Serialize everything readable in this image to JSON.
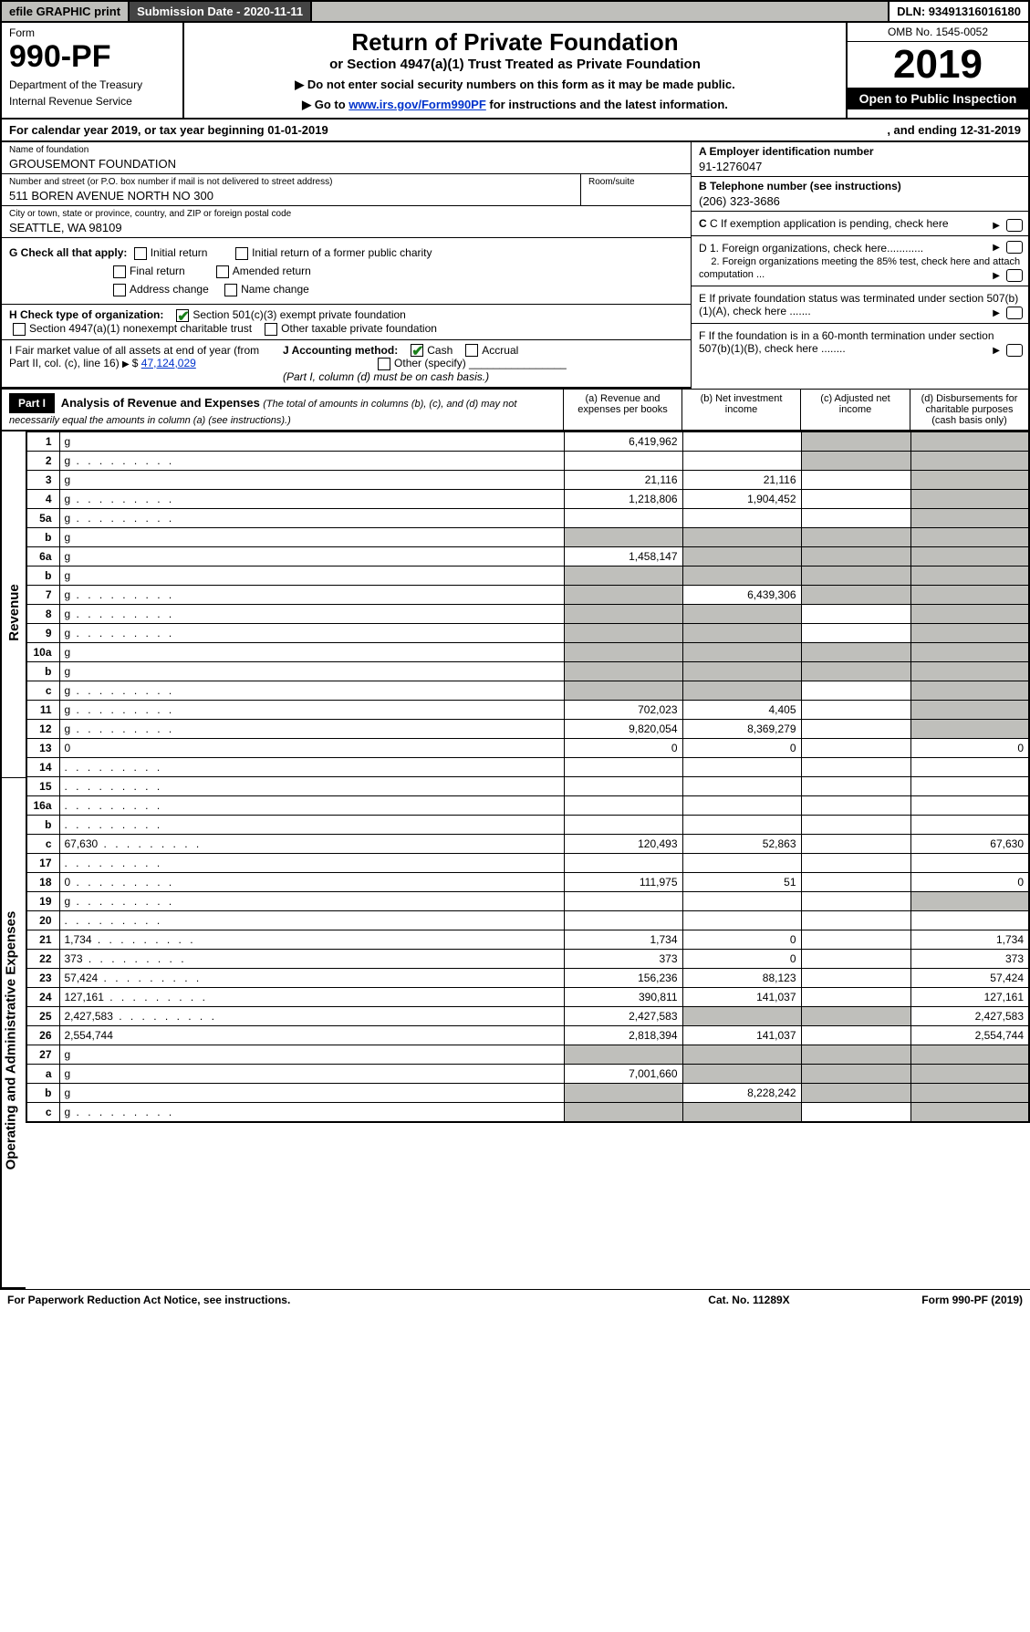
{
  "topbar": {
    "efile": "efile GRAPHIC print",
    "submission_label": "Submission Date - 2020-11-11",
    "dln": "DLN: 93491316016180"
  },
  "header": {
    "form_label": "Form",
    "form_number": "990-PF",
    "dept1": "Department of the Treasury",
    "dept2": "Internal Revenue Service",
    "title": "Return of Private Foundation",
    "subtitle": "or Section 4947(a)(1) Trust Treated as Private Foundation",
    "note1": "▶ Do not enter social security numbers on this form as it may be made public.",
    "note2_prefix": "▶ Go to ",
    "note2_link": "www.irs.gov/Form990PF",
    "note2_suffix": " for instructions and the latest information.",
    "omb": "OMB No. 1545-0052",
    "year": "2019",
    "open": "Open to Public Inspection"
  },
  "calrow": {
    "left": "For calendar year 2019, or tax year beginning 01-01-2019",
    "right": ", and ending 12-31-2019"
  },
  "info": {
    "name_lbl": "Name of foundation",
    "name": "GROUSEMONT FOUNDATION",
    "addr_lbl": "Number and street (or P.O. box number if mail is not delivered to street address)",
    "addr": "511 BOREN AVENUE NORTH NO 300",
    "room_lbl": "Room/suite",
    "city_lbl": "City or town, state or province, country, and ZIP or foreign postal code",
    "city": "SEATTLE, WA  98109",
    "a_lbl": "A Employer identification number",
    "a_val": "91-1276047",
    "b_lbl": "B Telephone number (see instructions)",
    "b_val": "(206) 323-3686",
    "c_lbl": "C If exemption application is pending, check here",
    "d1": "D 1. Foreign organizations, check here............",
    "d2": "2. Foreign organizations meeting the 85% test, check here and attach computation ...",
    "e": "E  If private foundation status was terminated under section 507(b)(1)(A), check here .......",
    "f": "F  If the foundation is in a 60-month termination under section 507(b)(1)(B), check here ........"
  },
  "g": {
    "label": "G Check all that apply:",
    "opts": [
      "Initial return",
      "Final return",
      "Address change",
      "Initial return of a former public charity",
      "Amended return",
      "Name change"
    ]
  },
  "h": {
    "label": "H Check type of organization:",
    "opt1": "Section 501(c)(3) exempt private foundation",
    "opt2": "Section 4947(a)(1) nonexempt charitable trust",
    "opt3": "Other taxable private foundation"
  },
  "i": {
    "label": "I Fair market value of all assets at end of year (from Part II, col. (c), line 16)",
    "val": "47,124,029",
    "j_label": "J Accounting method:",
    "j_cash": "Cash",
    "j_accrual": "Accrual",
    "j_other": "Other (specify)",
    "j_note": "(Part I, column (d) must be on cash basis.)"
  },
  "part1": {
    "label": "Part I",
    "title": "Analysis of Revenue and Expenses",
    "note": "(The total of amounts in columns (b), (c), and (d) may not necessarily equal the amounts in column (a) (see instructions).)",
    "col_a": "(a)   Revenue and expenses per books",
    "col_b": "(b)  Net investment income",
    "col_c": "(c)  Adjusted net income",
    "col_d": "(d)  Disbursements for charitable purposes (cash basis only)"
  },
  "side": {
    "revenue": "Revenue",
    "expenses": "Operating and Administrative Expenses"
  },
  "lines": [
    {
      "n": "1",
      "d": "g",
      "a": "6,419,962",
      "b": "",
      "c": "g"
    },
    {
      "n": "2",
      "d": "g",
      "a": "",
      "b": "",
      "c": "g",
      "dots": true
    },
    {
      "n": "3",
      "d": "g",
      "a": "21,116",
      "b": "21,116",
      "c": ""
    },
    {
      "n": "4",
      "d": "g",
      "a": "1,218,806",
      "b": "1,904,452",
      "c": "",
      "dots": true
    },
    {
      "n": "5a",
      "d": "g",
      "a": "",
      "b": "",
      "c": "",
      "dots": true
    },
    {
      "n": "b",
      "d": "g",
      "a": "g",
      "b": "g",
      "c": "g"
    },
    {
      "n": "6a",
      "d": "g",
      "a": "1,458,147",
      "b": "g",
      "c": "g"
    },
    {
      "n": "b",
      "d": "g",
      "a": "g",
      "b": "g",
      "c": "g"
    },
    {
      "n": "7",
      "d": "g",
      "a": "g",
      "b": "6,439,306",
      "c": "g",
      "dots": true
    },
    {
      "n": "8",
      "d": "g",
      "a": "g",
      "b": "g",
      "c": "",
      "dots": true
    },
    {
      "n": "9",
      "d": "g",
      "a": "g",
      "b": "g",
      "c": "",
      "dots": true
    },
    {
      "n": "10a",
      "d": "g",
      "a": "g",
      "b": "g",
      "c": "g"
    },
    {
      "n": "b",
      "d": "g",
      "a": "g",
      "b": "g",
      "c": "g"
    },
    {
      "n": "c",
      "d": "g",
      "a": "g",
      "b": "g",
      "c": "",
      "dots": true
    },
    {
      "n": "11",
      "d": "g",
      "a": "702,023",
      "b": "4,405",
      "c": "",
      "dots": true
    },
    {
      "n": "12",
      "d": "g",
      "a": "9,820,054",
      "b": "8,369,279",
      "c": "",
      "dots": true
    },
    {
      "n": "13",
      "d": "0",
      "a": "0",
      "b": "0",
      "c": ""
    },
    {
      "n": "14",
      "d": "",
      "a": "",
      "b": "",
      "c": "",
      "dots": true
    },
    {
      "n": "15",
      "d": "",
      "a": "",
      "b": "",
      "c": "",
      "dots": true
    },
    {
      "n": "16a",
      "d": "",
      "a": "",
      "b": "",
      "c": "",
      "dots": true
    },
    {
      "n": "b",
      "d": "",
      "a": "",
      "b": "",
      "c": "",
      "dots": true
    },
    {
      "n": "c",
      "d": "67,630",
      "a": "120,493",
      "b": "52,863",
      "c": "",
      "dots": true
    },
    {
      "n": "17",
      "d": "",
      "a": "",
      "b": "",
      "c": "",
      "dots": true
    },
    {
      "n": "18",
      "d": "0",
      "a": "111,975",
      "b": "51",
      "c": "",
      "dots": true
    },
    {
      "n": "19",
      "d": "g",
      "a": "",
      "b": "",
      "c": "",
      "dots": true
    },
    {
      "n": "20",
      "d": "",
      "a": "",
      "b": "",
      "c": "",
      "dots": true
    },
    {
      "n": "21",
      "d": "1,734",
      "a": "1,734",
      "b": "0",
      "c": "",
      "dots": true
    },
    {
      "n": "22",
      "d": "373",
      "a": "373",
      "b": "0",
      "c": "",
      "dots": true
    },
    {
      "n": "23",
      "d": "57,424",
      "a": "156,236",
      "b": "88,123",
      "c": "",
      "dots": true
    },
    {
      "n": "24",
      "d": "127,161",
      "a": "390,811",
      "b": "141,037",
      "c": "",
      "dots": true
    },
    {
      "n": "25",
      "d": "2,427,583",
      "a": "2,427,583",
      "b": "g",
      "c": "g",
      "dots": true
    },
    {
      "n": "26",
      "d": "2,554,744",
      "a": "2,818,394",
      "b": "141,037",
      "c": ""
    },
    {
      "n": "27",
      "d": "g",
      "a": "g",
      "b": "g",
      "c": "g"
    },
    {
      "n": "a",
      "d": "g",
      "a": "7,001,660",
      "b": "g",
      "c": "g"
    },
    {
      "n": "b",
      "d": "g",
      "a": "g",
      "b": "8,228,242",
      "c": "g"
    },
    {
      "n": "c",
      "d": "g",
      "a": "g",
      "b": "g",
      "c": "",
      "dots": true
    }
  ],
  "footer": {
    "left": "For Paperwork Reduction Act Notice, see instructions.",
    "mid": "Cat. No. 11289X",
    "right": "Form 990-PF (2019)"
  }
}
